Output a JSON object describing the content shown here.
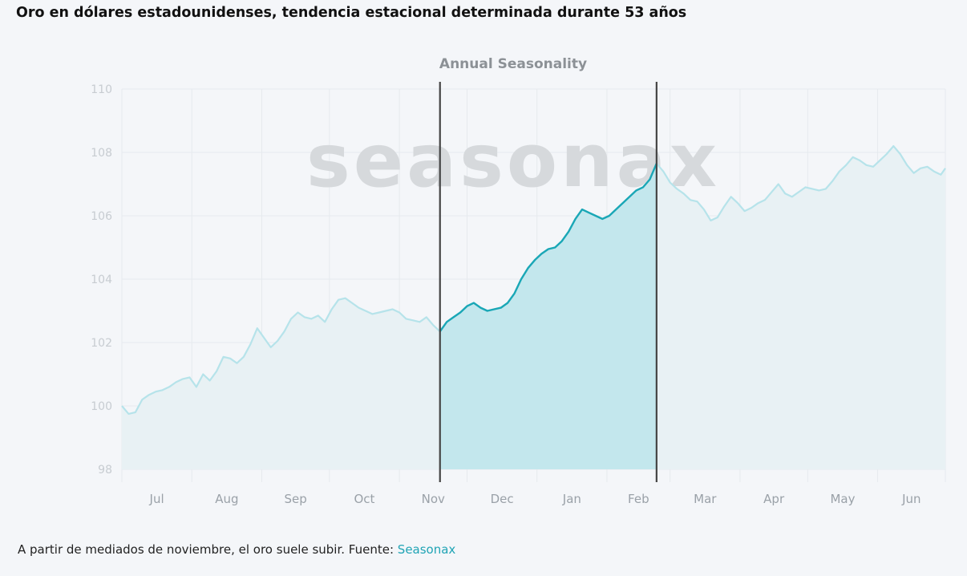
{
  "heading": "Oro en dólares estadounidenses, tendencia estacional determinada durante 53 años",
  "caption": {
    "text": "A partir de mediados de noviembre, el oro suele subir. Fuente: ",
    "source_link": "Seasonax"
  },
  "watermark": "seasonax",
  "colors": {
    "line_dim": "#b6e3ea",
    "line_highlight": "#1aa7b6",
    "fill_dim": "#e8f1f4",
    "fill_highlight": "#bfe6ec",
    "band_border": "#444444",
    "tick_text": "#c7ccd1",
    "month_text": "#9aa1a8",
    "grid": "#e6eaee"
  },
  "chart_data": {
    "type": "area",
    "title": "Annual Seasonality",
    "ylim": [
      98,
      110
    ],
    "yticks": [
      98,
      100,
      102,
      104,
      106,
      108,
      110
    ],
    "x_range": [
      0,
      365
    ],
    "grid": true,
    "months": [
      {
        "label": "Jul",
        "start": 0,
        "end": 31
      },
      {
        "label": "Aug",
        "start": 31,
        "end": 62
      },
      {
        "label": "Sep",
        "start": 62,
        "end": 92
      },
      {
        "label": "Oct",
        "start": 92,
        "end": 123
      },
      {
        "label": "Nov",
        "start": 123,
        "end": 153
      },
      {
        "label": "Dec",
        "start": 153,
        "end": 184
      },
      {
        "label": "Jan",
        "start": 184,
        "end": 215
      },
      {
        "label": "Feb",
        "start": 215,
        "end": 243
      },
      {
        "label": "Mar",
        "start": 243,
        "end": 274
      },
      {
        "label": "Apr",
        "start": 274,
        "end": 304
      },
      {
        "label": "May",
        "start": 304,
        "end": 335
      },
      {
        "label": "Jun",
        "start": 335,
        "end": 365
      }
    ],
    "highlight_range": [
      141,
      237
    ],
    "series": [
      {
        "points": [
          [
            0,
            100.0
          ],
          [
            3,
            99.75
          ],
          [
            6,
            99.8
          ],
          [
            9,
            100.2
          ],
          [
            12,
            100.35
          ],
          [
            15,
            100.45
          ],
          [
            18,
            100.5
          ],
          [
            21,
            100.6
          ],
          [
            24,
            100.75
          ],
          [
            27,
            100.85
          ],
          [
            30,
            100.9
          ],
          [
            33,
            100.6
          ],
          [
            36,
            101.0
          ],
          [
            39,
            100.8
          ],
          [
            42,
            101.1
          ],
          [
            45,
            101.55
          ],
          [
            48,
            101.5
          ],
          [
            51,
            101.35
          ],
          [
            54,
            101.55
          ],
          [
            57,
            101.95
          ],
          [
            60,
            102.45
          ],
          [
            63,
            102.15
          ],
          [
            66,
            101.85
          ],
          [
            69,
            102.05
          ],
          [
            72,
            102.35
          ],
          [
            75,
            102.75
          ],
          [
            78,
            102.95
          ],
          [
            81,
            102.8
          ],
          [
            84,
            102.75
          ],
          [
            87,
            102.85
          ],
          [
            90,
            102.65
          ],
          [
            93,
            103.05
          ],
          [
            96,
            103.35
          ],
          [
            99,
            103.4
          ],
          [
            102,
            103.25
          ],
          [
            105,
            103.1
          ],
          [
            108,
            103.0
          ],
          [
            111,
            102.9
          ],
          [
            114,
            102.95
          ],
          [
            117,
            103.0
          ],
          [
            120,
            103.05
          ],
          [
            123,
            102.95
          ],
          [
            126,
            102.75
          ],
          [
            129,
            102.7
          ],
          [
            132,
            102.65
          ],
          [
            135,
            102.8
          ],
          [
            138,
            102.55
          ],
          [
            141,
            102.35
          ],
          [
            144,
            102.65
          ],
          [
            147,
            102.8
          ],
          [
            150,
            102.95
          ],
          [
            153,
            103.15
          ],
          [
            156,
            103.25
          ],
          [
            159,
            103.1
          ],
          [
            162,
            103.0
          ],
          [
            165,
            103.05
          ],
          [
            168,
            103.1
          ],
          [
            171,
            103.25
          ],
          [
            174,
            103.55
          ],
          [
            177,
            104.0
          ],
          [
            180,
            104.35
          ],
          [
            183,
            104.6
          ],
          [
            186,
            104.8
          ],
          [
            189,
            104.95
          ],
          [
            192,
            105.0
          ],
          [
            195,
            105.2
          ],
          [
            198,
            105.5
          ],
          [
            201,
            105.9
          ],
          [
            204,
            106.2
          ],
          [
            207,
            106.1
          ],
          [
            210,
            106.0
          ],
          [
            213,
            105.9
          ],
          [
            216,
            106.0
          ],
          [
            219,
            106.2
          ],
          [
            222,
            106.4
          ],
          [
            225,
            106.6
          ],
          [
            228,
            106.8
          ],
          [
            231,
            106.9
          ],
          [
            234,
            107.15
          ],
          [
            237,
            107.65
          ],
          [
            240,
            107.4
          ],
          [
            243,
            107.05
          ],
          [
            246,
            106.85
          ],
          [
            249,
            106.7
          ],
          [
            252,
            106.5
          ],
          [
            255,
            106.45
          ],
          [
            258,
            106.2
          ],
          [
            261,
            105.85
          ],
          [
            264,
            105.95
          ],
          [
            267,
            106.3
          ],
          [
            270,
            106.6
          ],
          [
            273,
            106.4
          ],
          [
            276,
            106.15
          ],
          [
            279,
            106.25
          ],
          [
            282,
            106.4
          ],
          [
            285,
            106.5
          ],
          [
            288,
            106.75
          ],
          [
            291,
            107.0
          ],
          [
            294,
            106.7
          ],
          [
            297,
            106.6
          ],
          [
            300,
            106.75
          ],
          [
            303,
            106.9
          ],
          [
            306,
            106.85
          ],
          [
            309,
            106.8
          ],
          [
            312,
            106.85
          ],
          [
            315,
            107.1
          ],
          [
            318,
            107.4
          ],
          [
            321,
            107.6
          ],
          [
            324,
            107.85
          ],
          [
            327,
            107.75
          ],
          [
            330,
            107.6
          ],
          [
            333,
            107.55
          ],
          [
            336,
            107.75
          ],
          [
            339,
            107.95
          ],
          [
            342,
            108.2
          ],
          [
            345,
            107.95
          ],
          [
            348,
            107.6
          ],
          [
            351,
            107.35
          ],
          [
            354,
            107.5
          ],
          [
            357,
            107.55
          ],
          [
            360,
            107.4
          ],
          [
            363,
            107.3
          ],
          [
            365,
            107.5
          ]
        ]
      }
    ]
  }
}
